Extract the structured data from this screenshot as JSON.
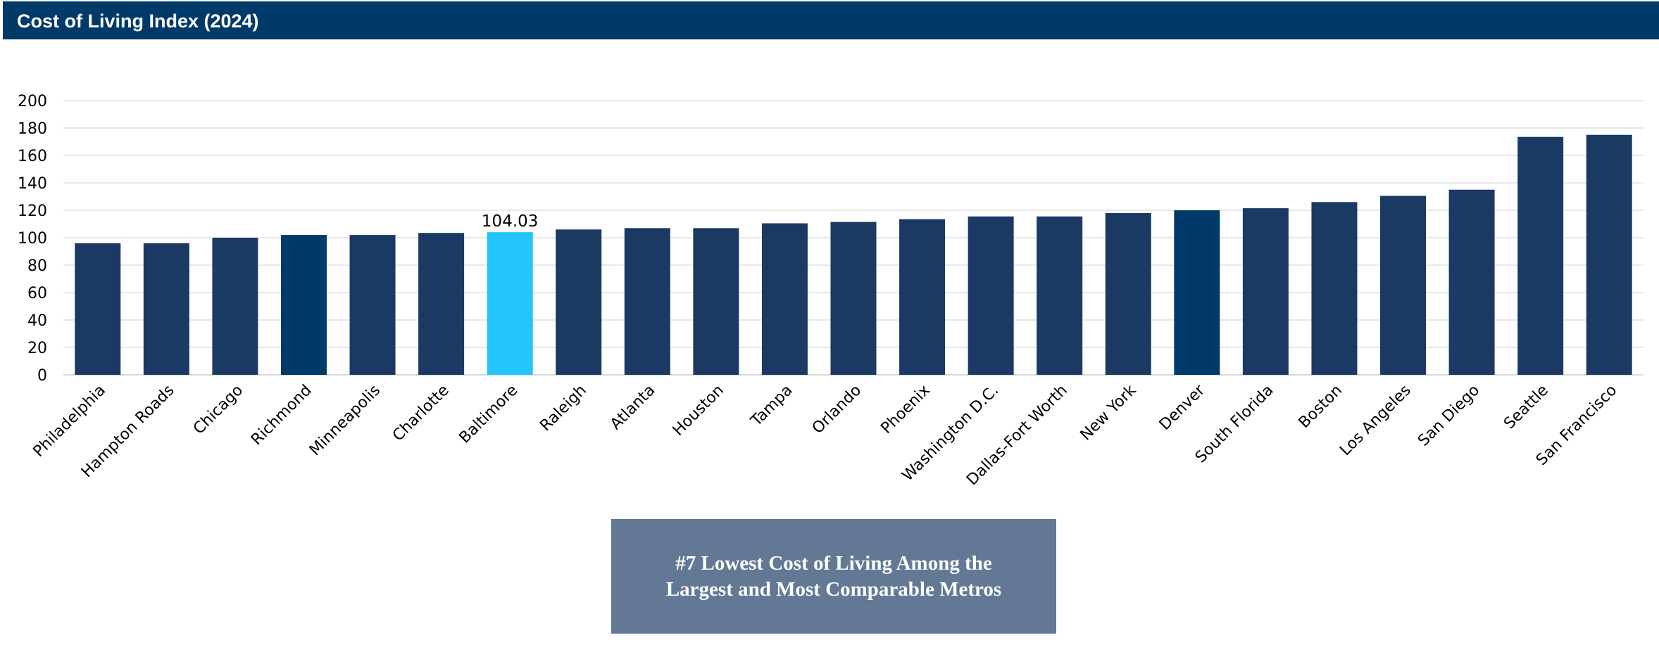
{
  "header": {
    "title": "Cost of Living Index (2024)"
  },
  "callout": {
    "text": "#7 Lowest Cost of Living Among the\nLargest and Most Comparable Metros"
  },
  "colors": {
    "bar": "#1b3a63",
    "highlight_bar": "#003a68",
    "baltimore_bar": "#24c4fd",
    "header": "#003a68",
    "callout": "#627895",
    "grid": "#e0e0e0"
  },
  "chart_data": {
    "type": "bar",
    "title": "Cost of Living Index (2024)",
    "categories": [
      "Philadelphia",
      "Hampton Roads",
      "Chicago",
      "Richmond",
      "Minneapolis",
      "Charlotte",
      "Baltimore",
      "Raleigh",
      "Atlanta",
      "Houston",
      "Tampa",
      "Orlando",
      "Phoenix",
      "Washington D.C.",
      "Dallas-Fort Worth",
      "New York",
      "Denver",
      "South Florida",
      "Boston",
      "Los Angeles",
      "San Diego",
      "Seattle",
      "San Francisco"
    ],
    "values": [
      96,
      96,
      100,
      102,
      102,
      103.5,
      104.03,
      106,
      107,
      107,
      110.5,
      111.5,
      113.5,
      115.5,
      115.5,
      118,
      120,
      121.5,
      126,
      130.5,
      135,
      173.5,
      175
    ],
    "highlighted": [
      "Richmond",
      "Denver"
    ],
    "featured": "Baltimore",
    "data_labels": [
      {
        "category": "Baltimore",
        "label": "104.03"
      }
    ],
    "yticks": [
      "0",
      "20",
      "40",
      "60",
      "80",
      "100",
      "120",
      "140",
      "160",
      "180",
      "200"
    ],
    "ylim": [
      0,
      200
    ],
    "xlabel": "",
    "ylabel": "",
    "grid": true,
    "legend": "none"
  }
}
